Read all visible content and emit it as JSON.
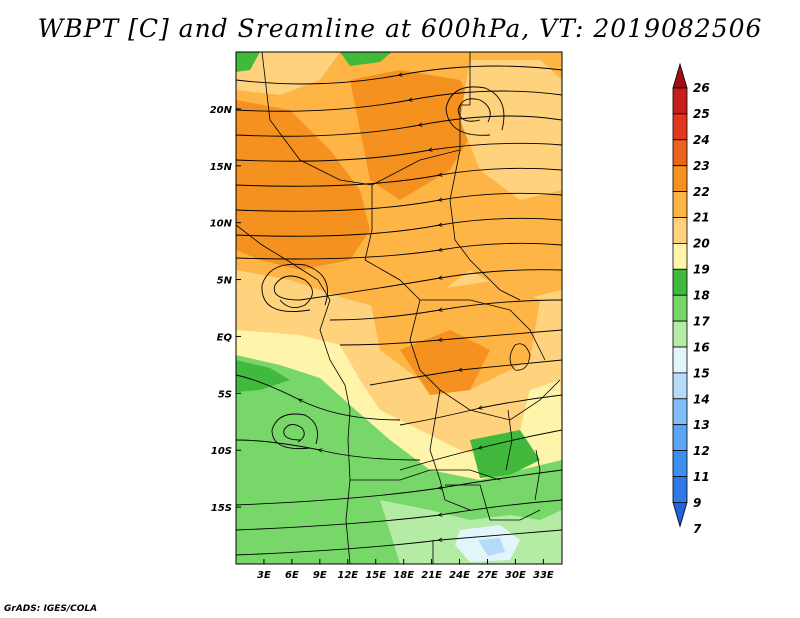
{
  "title": "WBPT [C] and Sreamline at 600hPa, VT: 2019082506",
  "credit": "GrADS: IGES/COLA",
  "map": {
    "lon_range": [
      0,
      35
    ],
    "lat_range": [
      -20,
      25
    ],
    "x_ticks": [
      {
        "value": 3,
        "label": "3E"
      },
      {
        "value": 6,
        "label": "6E"
      },
      {
        "value": 9,
        "label": "9E"
      },
      {
        "value": 12,
        "label": "12E"
      },
      {
        "value": 15,
        "label": "15E"
      },
      {
        "value": 18,
        "label": "18E"
      },
      {
        "value": 21,
        "label": "21E"
      },
      {
        "value": 24,
        "label": "24E"
      },
      {
        "value": 27,
        "label": "27E"
      },
      {
        "value": 30,
        "label": "30E"
      },
      {
        "value": 33,
        "label": "33E"
      }
    ],
    "y_ticks": [
      {
        "value": 20,
        "label": "20N"
      },
      {
        "value": 15,
        "label": "15N"
      },
      {
        "value": 10,
        "label": "10N"
      },
      {
        "value": 5,
        "label": "5N"
      },
      {
        "value": 0,
        "label": "EQ"
      },
      {
        "value": -5,
        "label": "5S"
      },
      {
        "value": -10,
        "label": "10S"
      },
      {
        "value": -15,
        "label": "15S"
      }
    ],
    "field": "Wet-bulb potential temperature (C) with 600hPa streamlines"
  },
  "colorbar": {
    "levels": [
      {
        "label": "7",
        "color": "#1e64dc"
      },
      {
        "label": "9",
        "color": "#2d7ae8"
      },
      {
        "label": "11",
        "color": "#3d8ff0"
      },
      {
        "label": "12",
        "color": "#5aa5f5"
      },
      {
        "label": "13",
        "color": "#82befa"
      },
      {
        "label": "14",
        "color": "#b4dcfa"
      },
      {
        "label": "15",
        "color": "#e1f5fa"
      },
      {
        "label": "16",
        "color": "#b4eba5"
      },
      {
        "label": "17",
        "color": "#78d769"
      },
      {
        "label": "18",
        "color": "#41b93c"
      },
      {
        "label": "19",
        "color": "#fff5aa"
      },
      {
        "label": "20",
        "color": "#ffd27d"
      },
      {
        "label": "21",
        "color": "#ffb446"
      },
      {
        "label": "22",
        "color": "#f5911e"
      },
      {
        "label": "23",
        "color": "#eb641e"
      },
      {
        "label": "24",
        "color": "#e1371e"
      },
      {
        "label": "25",
        "color": "#c81e1e"
      },
      {
        "label": "26",
        "color": "#a00f0f"
      }
    ]
  }
}
